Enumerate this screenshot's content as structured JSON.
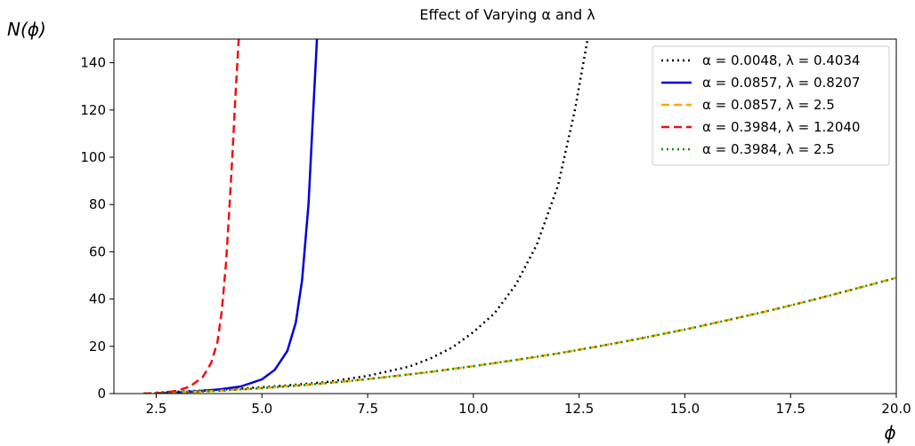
{
  "chart_data": {
    "type": "line",
    "title": "Effect of Varying α and λ",
    "xlabel": "ϕ",
    "ylabel": "N(ϕ)",
    "xlim": [
      1.5,
      20.0
    ],
    "ylim": [
      0,
      150
    ],
    "xticks": [
      2.5,
      5.0,
      7.5,
      10.0,
      12.5,
      15.0,
      17.5,
      20.0
    ],
    "xtick_labels": [
      "2.5",
      "5.0",
      "7.5",
      "10.0",
      "12.5",
      "15.0",
      "17.5",
      "20.0"
    ],
    "yticks": [
      0,
      20,
      40,
      60,
      80,
      100,
      120,
      140
    ],
    "ytick_labels": [
      "0",
      "20",
      "40",
      "60",
      "80",
      "100",
      "120",
      "140"
    ],
    "grid": false,
    "legend_position": "top-right",
    "series": [
      {
        "name": "α = 0.0048,  λ = 0.4034",
        "color": "#000000",
        "style": "dotted",
        "x": [
          2.5,
          3.5,
          4.5,
          5.5,
          6.5,
          7.5,
          8.5,
          9.0,
          9.5,
          10.0,
          10.5,
          11.0,
          11.5,
          12.0,
          12.4,
          12.7
        ],
        "y": [
          0.4,
          1.2,
          2.1,
          3.3,
          4.8,
          7.5,
          11.5,
          15,
          19.5,
          26,
          34,
          46,
          63,
          88,
          120,
          150
        ]
      },
      {
        "name": "α = 0.0857,  λ = 0.8207",
        "color": "#0000dd",
        "style": "solid",
        "x": [
          2.5,
          3.0,
          3.5,
          4.0,
          4.5,
          5.0,
          5.3,
          5.6,
          5.8,
          5.95,
          6.1,
          6.2,
          6.3
        ],
        "y": [
          0.2,
          0.5,
          1.0,
          1.8,
          3.0,
          6.0,
          10,
          18,
          30,
          48,
          80,
          115,
          150
        ]
      },
      {
        "name": "α = 0.0857,  λ = 2.5",
        "color": "#ffa500",
        "style": "dashed",
        "x": [
          2.2,
          3.0,
          4.0,
          5.0,
          6.0,
          7.0,
          8.0,
          9.0,
          10.0,
          11.0,
          12.0,
          13.0,
          14.0,
          15.0,
          16.0,
          17.0,
          18.0,
          19.0,
          20.0
        ],
        "y": [
          0,
          0.5,
          1.2,
          2.3,
          3.6,
          5.2,
          7.1,
          9.2,
          11.6,
          14.2,
          17.0,
          20.1,
          23.5,
          27.1,
          31.0,
          35.1,
          39.5,
          44.2,
          49
        ]
      },
      {
        "name": "α = 0.3984,  λ = 1.2040",
        "color": "#ee1111",
        "style": "dashed",
        "x": [
          2.2,
          2.6,
          3.0,
          3.3,
          3.6,
          3.8,
          3.95,
          4.05,
          4.15,
          4.22,
          4.3,
          4.37,
          4.45
        ],
        "y": [
          0,
          0.3,
          1.2,
          3.0,
          7,
          13,
          22,
          35,
          55,
          75,
          100,
          125,
          150
        ]
      },
      {
        "name": "α = 0.3984,  λ = 2.5",
        "color": "#118811",
        "style": "dotted",
        "x": [
          2.2,
          3.0,
          4.0,
          5.0,
          6.0,
          7.0,
          8.0,
          9.0,
          10.0,
          11.0,
          12.0,
          13.0,
          14.0,
          15.0,
          16.0,
          17.0,
          18.0,
          19.0,
          20.0
        ],
        "y": [
          0,
          0.5,
          1.2,
          2.3,
          3.6,
          5.2,
          7.1,
          9.2,
          11.6,
          14.2,
          17.0,
          20.1,
          23.5,
          27.1,
          31.0,
          35.1,
          39.5,
          44.2,
          49
        ]
      }
    ]
  }
}
